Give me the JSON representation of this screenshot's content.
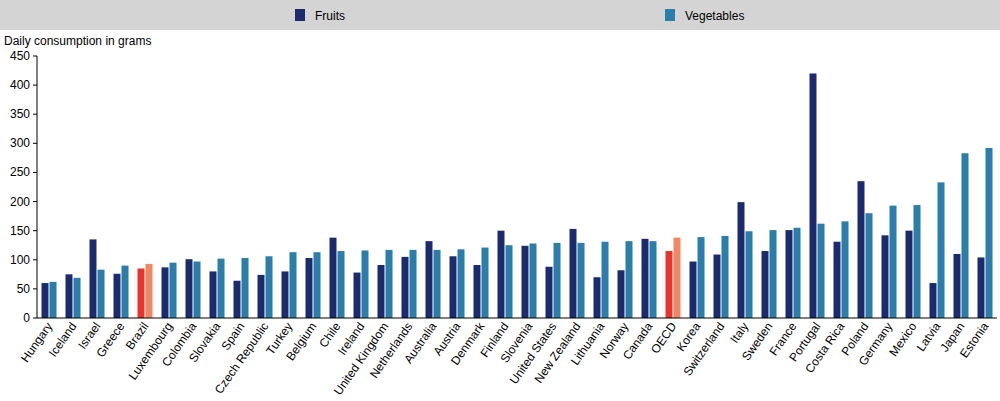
{
  "chart_data": {
    "type": "bar",
    "y_label": "Daily consumption in grams",
    "categories": [
      "Hungary",
      "Iceland",
      "Israel",
      "Greece",
      "Brazil",
      "Luxembourg",
      "Colombia",
      "Slovakia",
      "Spain",
      "Czech Republic",
      "Turkey",
      "Belgium",
      "Chile",
      "Ireland",
      "United Kingdom",
      "Netherlands",
      "Australia",
      "Austria",
      "Denmark",
      "Finland",
      "Slovenia",
      "United States",
      "New Zealand",
      "Lithuania",
      "Norway",
      "Canada",
      "OECD",
      "Korea",
      "Switzerland",
      "Italy",
      "Sweden",
      "France",
      "Portugal",
      "Costa Rica",
      "Poland",
      "Germany",
      "Mexico",
      "Latvia",
      "Japan",
      "Estonia"
    ],
    "series": [
      {
        "name": "Fruits",
        "color": "#1c2a6e",
        "colors": [
          "#1c2a6e",
          "#1c2a6e",
          "#1c2a6e",
          "#1c2a6e",
          "#e8322d",
          "#1c2a6e",
          "#1c2a6e",
          "#1c2a6e",
          "#1c2a6e",
          "#1c2a6e",
          "#1c2a6e",
          "#1c2a6e",
          "#1c2a6e",
          "#1c2a6e",
          "#1c2a6e",
          "#1c2a6e",
          "#1c2a6e",
          "#1c2a6e",
          "#1c2a6e",
          "#1c2a6e",
          "#1c2a6e",
          "#1c2a6e",
          "#1c2a6e",
          "#1c2a6e",
          "#1c2a6e",
          "#1c2a6e",
          "#e8322d",
          "#1c2a6e",
          "#1c2a6e",
          "#1c2a6e",
          "#1c2a6e",
          "#1c2a6e",
          "#1c2a6e",
          "#1c2a6e",
          "#1c2a6e",
          "#1c2a6e",
          "#1c2a6e",
          "#1c2a6e",
          "#1c2a6e",
          "#1c2a6e"
        ],
        "values": [
          60,
          75,
          135,
          76,
          85,
          87,
          101,
          80,
          64,
          74,
          80,
          103,
          138,
          78,
          91,
          105,
          132,
          106,
          91,
          150,
          124,
          88,
          153,
          70,
          82,
          136,
          115,
          97,
          109,
          199,
          115,
          151,
          420,
          131,
          235,
          142,
          150,
          60,
          110,
          104
        ]
      },
      {
        "name": "Vegetables",
        "color": "#2b7ea9",
        "colors": [
          "#2b7ea9",
          "#2b7ea9",
          "#2b7ea9",
          "#2b7ea9",
          "#f08763",
          "#2b7ea9",
          "#2b7ea9",
          "#2b7ea9",
          "#2b7ea9",
          "#2b7ea9",
          "#2b7ea9",
          "#2b7ea9",
          "#2b7ea9",
          "#2b7ea9",
          "#2b7ea9",
          "#2b7ea9",
          "#2b7ea9",
          "#2b7ea9",
          "#2b7ea9",
          "#2b7ea9",
          "#2b7ea9",
          "#2b7ea9",
          "#2b7ea9",
          "#2b7ea9",
          "#2b7ea9",
          "#2b7ea9",
          "#f08763",
          "#2b7ea9",
          "#2b7ea9",
          "#2b7ea9",
          "#2b7ea9",
          "#2b7ea9",
          "#2b7ea9",
          "#2b7ea9",
          "#2b7ea9",
          "#2b7ea9",
          "#2b7ea9",
          "#2b7ea9",
          "#2b7ea9",
          "#2b7ea9"
        ],
        "values": [
          62,
          69,
          83,
          90,
          93,
          95,
          97,
          102,
          103,
          106,
          113,
          113,
          115,
          116,
          117,
          117,
          117,
          118,
          121,
          125,
          128,
          129,
          129,
          131,
          132,
          132,
          138,
          139,
          141,
          149,
          151,
          155,
          162,
          166,
          180,
          193,
          194,
          233,
          283,
          292
        ]
      }
    ],
    "ylim": [
      0,
      450
    ],
    "yticks": [
      0,
      50,
      100,
      150,
      200,
      250,
      300,
      350,
      400,
      450
    ],
    "grid": false,
    "legend": "top"
  }
}
